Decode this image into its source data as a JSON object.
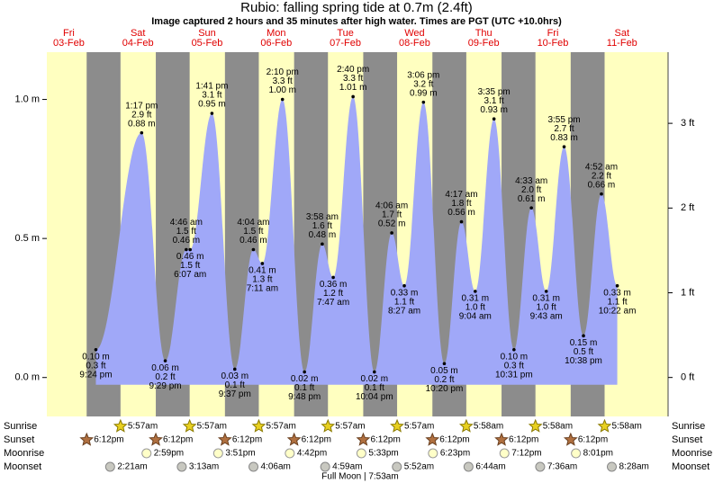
{
  "chart_data": {
    "type": "area",
    "title": "Rubio: falling  spring tide at 0.7m (2.4ft)",
    "subtitle": "Image captured 2 hours and 35 minutes after high water. Times are PGT (UTC +10.0hrs)",
    "color": "#a0a8f8",
    "night_color": "#8c8c8c",
    "days": [
      {
        "weekday": "Fri",
        "date": "03-Feb"
      },
      {
        "weekday": "Sat",
        "date": "04-Feb"
      },
      {
        "weekday": "Sun",
        "date": "05-Feb"
      },
      {
        "weekday": "Mon",
        "date": "06-Feb"
      },
      {
        "weekday": "Tue",
        "date": "07-Feb"
      },
      {
        "weekday": "Wed",
        "date": "08-Feb"
      },
      {
        "weekday": "Thu",
        "date": "09-Feb"
      },
      {
        "weekday": "Fri",
        "date": "10-Feb"
      },
      {
        "weekday": "Sat",
        "date": "11-Feb"
      }
    ],
    "dates": [
      "03-Feb",
      "04-Feb",
      "04-Feb",
      "05-Feb",
      "05-Feb",
      "05-Feb",
      "05-Feb",
      "06-Feb",
      "06-Feb",
      "06-Feb",
      "06-Feb",
      "07-Feb",
      "07-Feb",
      "07-Feb",
      "07-Feb",
      "08-Feb",
      "08-Feb",
      "08-Feb",
      "08-Feb",
      "09-Feb",
      "09-Feb",
      "09-Feb",
      "09-Feb",
      "10-Feb",
      "10-Feb",
      "10-Feb",
      "10-Feb",
      "11-Feb",
      "11-Feb"
    ],
    "times": [
      "9:24 pm",
      "1:17 pm",
      "9:29 pm",
      "4:46 am",
      "6:07 am",
      "1:41 pm",
      "9:37 pm",
      "4:04 am",
      "7:11 am",
      "2:10 pm",
      "9:48 pm",
      "3:58 am",
      "7:47 am",
      "2:40 pm",
      "10:04 pm",
      "4:06 am",
      "8:27 am",
      "3:06 pm",
      "10:20 pm",
      "4:17 am",
      "9:04 am",
      "3:35 pm",
      "10:31 pm",
      "4:33 am",
      "9:43 am",
      "3:55 pm",
      "10:38 pm",
      "4:52 am",
      "10:22 am"
    ],
    "values": [
      0.1,
      0.88,
      0.06,
      0.46,
      0.46,
      0.95,
      0.03,
      0.46,
      0.41,
      1.0,
      0.02,
      0.48,
      0.36,
      1.01,
      0.02,
      0.52,
      0.33,
      0.99,
      0.05,
      0.56,
      0.31,
      0.93,
      0.1,
      0.61,
      0.31,
      0.83,
      0.15,
      0.66,
      0.33
    ],
    "value_labels": [
      "0.10 m",
      "0.88 m",
      "0.06 m",
      "0.46 m",
      "0.46 m",
      "0.95 m",
      "0.03 m",
      "0.46 m",
      "0.41 m",
      "1.00 m",
      "0.02 m",
      "0.48 m",
      "0.36 m",
      "1.01 m",
      "0.02 m",
      "0.52 m",
      "0.33 m",
      "0.99 m",
      "0.05 m",
      "0.56 m",
      "0.31 m",
      "0.93 m",
      "0.10 m",
      "0.61 m",
      "0.31 m",
      "0.83 m",
      "0.15 m",
      "0.66 m",
      "0.33 m"
    ],
    "ft_labels": [
      "0.3 ft",
      "2.9 ft",
      "0.2 ft",
      "1.5 ft",
      "1.5 ft",
      "3.1 ft",
      "0.1 ft",
      "1.5 ft",
      "1.3 ft",
      "3.3 ft",
      "0.1 ft",
      "1.6 ft",
      "1.2 ft",
      "3.3 ft",
      "0.1 ft",
      "1.7 ft",
      "1.1 ft",
      "3.2 ft",
      "0.2 ft",
      "1.8 ft",
      "1.0 ft",
      "3.1 ft",
      "0.3 ft",
      "2.0 ft",
      "1.0 ft",
      "2.7 ft",
      "0.5 ft",
      "2.2 ft",
      "1.1 ft"
    ],
    "ylim": [
      -0.14,
      1.17
    ],
    "yticks": [
      {
        "value": 0,
        "label": "0.0 m"
      },
      {
        "value": 0.5,
        "label": "0.5 m"
      },
      {
        "value": 1,
        "label": "1.0 m"
      }
    ],
    "y2lim": [
      -0.46,
      3.84
    ],
    "y2ticks": [
      {
        "value": 0,
        "label": "0 ft"
      },
      {
        "value": 1,
        "label": "1 ft"
      },
      {
        "value": 2,
        "label": "2 ft"
      },
      {
        "value": 3,
        "label": "3 ft"
      }
    ],
    "almanac": [
      {
        "name": "Sunrise",
        "icon": "sunrise",
        "events": [
          {
            "date": "04-Feb",
            "time": "5:57am"
          },
          {
            "date": "05-Feb",
            "time": "5:57am"
          },
          {
            "date": "06-Feb",
            "time": "5:57am"
          },
          {
            "date": "07-Feb",
            "time": "5:57am"
          },
          {
            "date": "08-Feb",
            "time": "5:57am"
          },
          {
            "date": "09-Feb",
            "time": "5:58am"
          },
          {
            "date": "10-Feb",
            "time": "5:58am"
          },
          {
            "date": "11-Feb",
            "time": "5:58am"
          }
        ]
      },
      {
        "name": "Sunset",
        "icon": "sunset",
        "events": [
          {
            "date": "03-Feb",
            "time": "6:12pm"
          },
          {
            "date": "04-Feb",
            "time": "6:12pm"
          },
          {
            "date": "05-Feb",
            "time": "6:12pm"
          },
          {
            "date": "06-Feb",
            "time": "6:12pm"
          },
          {
            "date": "07-Feb",
            "time": "6:12pm"
          },
          {
            "date": "08-Feb",
            "time": "6:12pm"
          },
          {
            "date": "09-Feb",
            "time": "6:12pm"
          },
          {
            "date": "10-Feb",
            "time": "6:12pm"
          }
        ]
      },
      {
        "name": "Moonrise",
        "icon": "moonrise",
        "events": [
          {
            "date": "04-Feb",
            "time": "2:59pm"
          },
          {
            "date": "05-Feb",
            "time": "3:51pm"
          },
          {
            "date": "06-Feb",
            "time": "4:42pm"
          },
          {
            "date": "07-Feb",
            "time": "5:33pm"
          },
          {
            "date": "08-Feb",
            "time": "6:23pm"
          },
          {
            "date": "09-Feb",
            "time": "7:12pm"
          },
          {
            "date": "10-Feb",
            "time": "8:01pm"
          }
        ]
      },
      {
        "name": "Moonset",
        "icon": "moonset",
        "events": [
          {
            "date": "04-Feb",
            "time": "2:21am"
          },
          {
            "date": "05-Feb",
            "time": "3:13am"
          },
          {
            "date": "06-Feb",
            "time": "4:06am"
          },
          {
            "date": "07-Feb",
            "time": "4:59am"
          },
          {
            "date": "08-Feb",
            "time": "5:52am"
          },
          {
            "date": "09-Feb",
            "time": "6:44am"
          },
          {
            "date": "10-Feb",
            "time": "7:36am"
          },
          {
            "date": "11-Feb",
            "time": "8:28am"
          }
        ]
      }
    ],
    "full_moon": "Full Moon | 7:53am"
  }
}
